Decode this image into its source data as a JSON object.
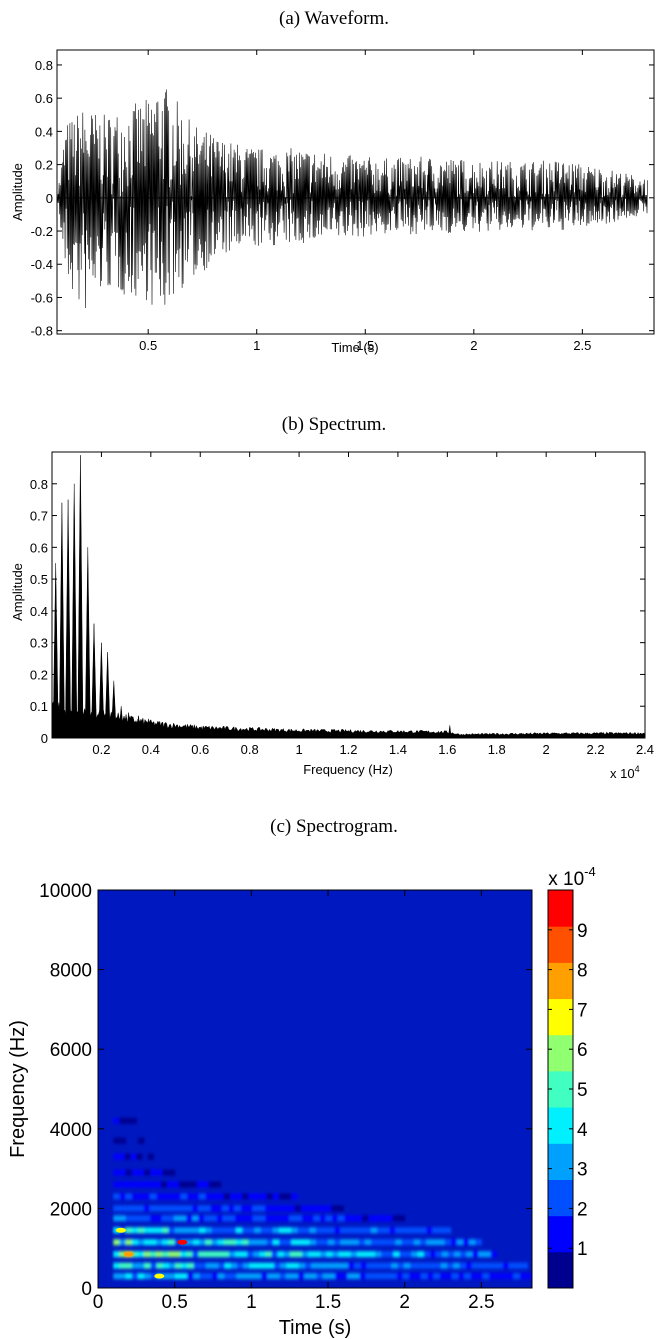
{
  "chart_data": [
    {
      "type": "line",
      "caption": "(a) Waveform.",
      "xlabel": "Time (s)",
      "ylabel": "Amplitude",
      "xlim": [
        0.08,
        2.83
      ],
      "ylim": [
        -0.82,
        0.89
      ],
      "xticks": [
        0.5,
        1,
        1.5,
        2,
        2.5
      ],
      "xtick_labels": [
        "0.5",
        "1",
        "1.5",
        "2",
        "2.5"
      ],
      "yticks": [
        -0.8,
        -0.6,
        -0.4,
        -0.2,
        0,
        0.2,
        0.4,
        0.6,
        0.8
      ],
      "ytick_labels": [
        "-0.8",
        "-0.6",
        "-0.4",
        "-0.2",
        "0",
        "0.2",
        "0.4",
        "0.6",
        "0.8"
      ],
      "grid": false,
      "envelope": {
        "time": [
          0.08,
          0.12,
          0.2,
          0.3,
          0.4,
          0.5,
          0.55,
          0.6,
          0.7,
          0.85,
          1.0,
          1.2,
          1.4,
          1.6,
          1.8,
          2.0,
          2.2,
          2.4,
          2.6,
          2.8
        ],
        "upper": [
          0.0,
          0.45,
          0.55,
          0.5,
          0.55,
          0.6,
          0.72,
          0.65,
          0.45,
          0.35,
          0.3,
          0.3,
          0.26,
          0.24,
          0.25,
          0.23,
          0.22,
          0.23,
          0.18,
          0.12
        ],
        "lower": [
          0.0,
          -0.5,
          -0.72,
          -0.55,
          -0.6,
          -0.62,
          -0.76,
          -0.62,
          -0.5,
          -0.35,
          -0.3,
          -0.28,
          -0.25,
          -0.22,
          -0.22,
          -0.21,
          -0.2,
          -0.2,
          -0.16,
          -0.1
        ]
      }
    },
    {
      "type": "area",
      "caption": "(b) Spectrum.",
      "xlabel": "Frequency (Hz)",
      "ylabel": "Amplitude",
      "x_multiplier_label": "x 10",
      "x_multiplier_exp": "4",
      "xlim": [
        0,
        2.4
      ],
      "ylim": [
        0,
        0.9
      ],
      "xticks": [
        0.2,
        0.4,
        0.6,
        0.8,
        1,
        1.2,
        1.4,
        1.6,
        1.8,
        2,
        2.2,
        2.4
      ],
      "xtick_labels": [
        "0.2",
        "0.4",
        "0.6",
        "0.8",
        "1",
        "1.2",
        "1.4",
        "1.6",
        "1.8",
        "2",
        "2.2",
        "2.4"
      ],
      "yticks": [
        0,
        0.1,
        0.2,
        0.3,
        0.4,
        0.5,
        0.6,
        0.7,
        0.8
      ],
      "ytick_labels": [
        "0",
        "0.1",
        "0.2",
        "0.3",
        "0.4",
        "0.5",
        "0.6",
        "0.7",
        "0.8"
      ],
      "grid": false,
      "peaks": {
        "freq": [
          0.015,
          0.04,
          0.065,
          0.09,
          0.115,
          0.145,
          0.17,
          0.2,
          0.225,
          0.25,
          0.28,
          0.31,
          0.35,
          0.39,
          0.43,
          1.61
        ],
        "amplitude": [
          0.55,
          0.74,
          0.75,
          0.8,
          0.89,
          0.6,
          0.36,
          0.3,
          0.27,
          0.18,
          0.1,
          0.08,
          0.07,
          0.06,
          0.05,
          0.04
        ]
      },
      "floor": {
        "freq": [
          0,
          0.2,
          0.4,
          0.6,
          0.8,
          1.0,
          1.4,
          1.6,
          1.65,
          2.0,
          2.4
        ],
        "amplitude": [
          0.1,
          0.08,
          0.05,
          0.035,
          0.03,
          0.025,
          0.022,
          0.02,
          0.012,
          0.015,
          0.016
        ]
      }
    },
    {
      "type": "heatmap",
      "caption": "(c) Spectrogram.",
      "xlabel": "Time (s)",
      "ylabel": "Frequency (Hz)",
      "xlim": [
        0,
        2.83
      ],
      "ylim": [
        0,
        10000
      ],
      "xticks": [
        0,
        0.5,
        1,
        1.5,
        2,
        2.5
      ],
      "xtick_labels": [
        "0",
        "0.5",
        "1",
        "1.5",
        "2",
        "2.5"
      ],
      "yticks": [
        0,
        2000,
        4000,
        6000,
        8000,
        10000
      ],
      "ytick_labels": [
        "0",
        "2000",
        "4000",
        "6000",
        "8000",
        "10000"
      ],
      "colorbar": {
        "multiplier_label": "x 10",
        "multiplier_exp": "-4",
        "max": 10,
        "ticks": [
          1,
          2,
          3,
          4,
          5,
          6,
          7,
          8,
          9
        ],
        "tick_labels": [
          "1",
          "2",
          "3",
          "4",
          "5",
          "6",
          "7",
          "8",
          "9"
        ],
        "colors": [
          "#00008f",
          "#0000ff",
          "#0050ff",
          "#00a0ff",
          "#00f0ff",
          "#40ffc0",
          "#90ff70",
          "#ffff00",
          "#ffa000",
          "#ff5000",
          "#ff0000"
        ],
        "background": "#0018c0"
      },
      "bands": [
        {
          "freq": 300,
          "t_start": 0.1,
          "t_end": 2.83,
          "intensity": 3.5
        },
        {
          "freq": 560,
          "t_start": 0.1,
          "t_end": 2.8,
          "intensity": 4.5
        },
        {
          "freq": 850,
          "t_start": 0.1,
          "t_end": 2.6,
          "intensity": 5.5
        },
        {
          "freq": 1150,
          "t_start": 0.1,
          "t_end": 2.5,
          "intensity": 5.0
        },
        {
          "freq": 1450,
          "t_start": 0.1,
          "t_end": 2.3,
          "intensity": 4.5
        },
        {
          "freq": 1750,
          "t_start": 0.1,
          "t_end": 2.0,
          "intensity": 3.0
        },
        {
          "freq": 2000,
          "t_start": 0.1,
          "t_end": 1.6,
          "intensity": 2.5
        },
        {
          "freq": 2300,
          "t_start": 0.1,
          "t_end": 1.3,
          "intensity": 2.0
        },
        {
          "freq": 2600,
          "t_start": 0.1,
          "t_end": 0.8,
          "intensity": 1.8
        },
        {
          "freq": 2900,
          "t_start": 0.1,
          "t_end": 0.5,
          "intensity": 1.5
        },
        {
          "freq": 3300,
          "t_start": 0.1,
          "t_end": 0.4,
          "intensity": 1.3
        },
        {
          "freq": 3700,
          "t_start": 0.1,
          "t_end": 0.3,
          "intensity": 1.2
        },
        {
          "freq": 4200,
          "t_start": 0.1,
          "t_end": 0.25,
          "intensity": 1.1
        }
      ],
      "hotspots": [
        {
          "t": 0.55,
          "freq": 1150,
          "value": 9.5
        },
        {
          "t": 0.2,
          "freq": 850,
          "value": 7.5
        },
        {
          "t": 0.15,
          "freq": 1450,
          "value": 7.0
        },
        {
          "t": 0.4,
          "freq": 300,
          "value": 6.5
        }
      ]
    }
  ]
}
